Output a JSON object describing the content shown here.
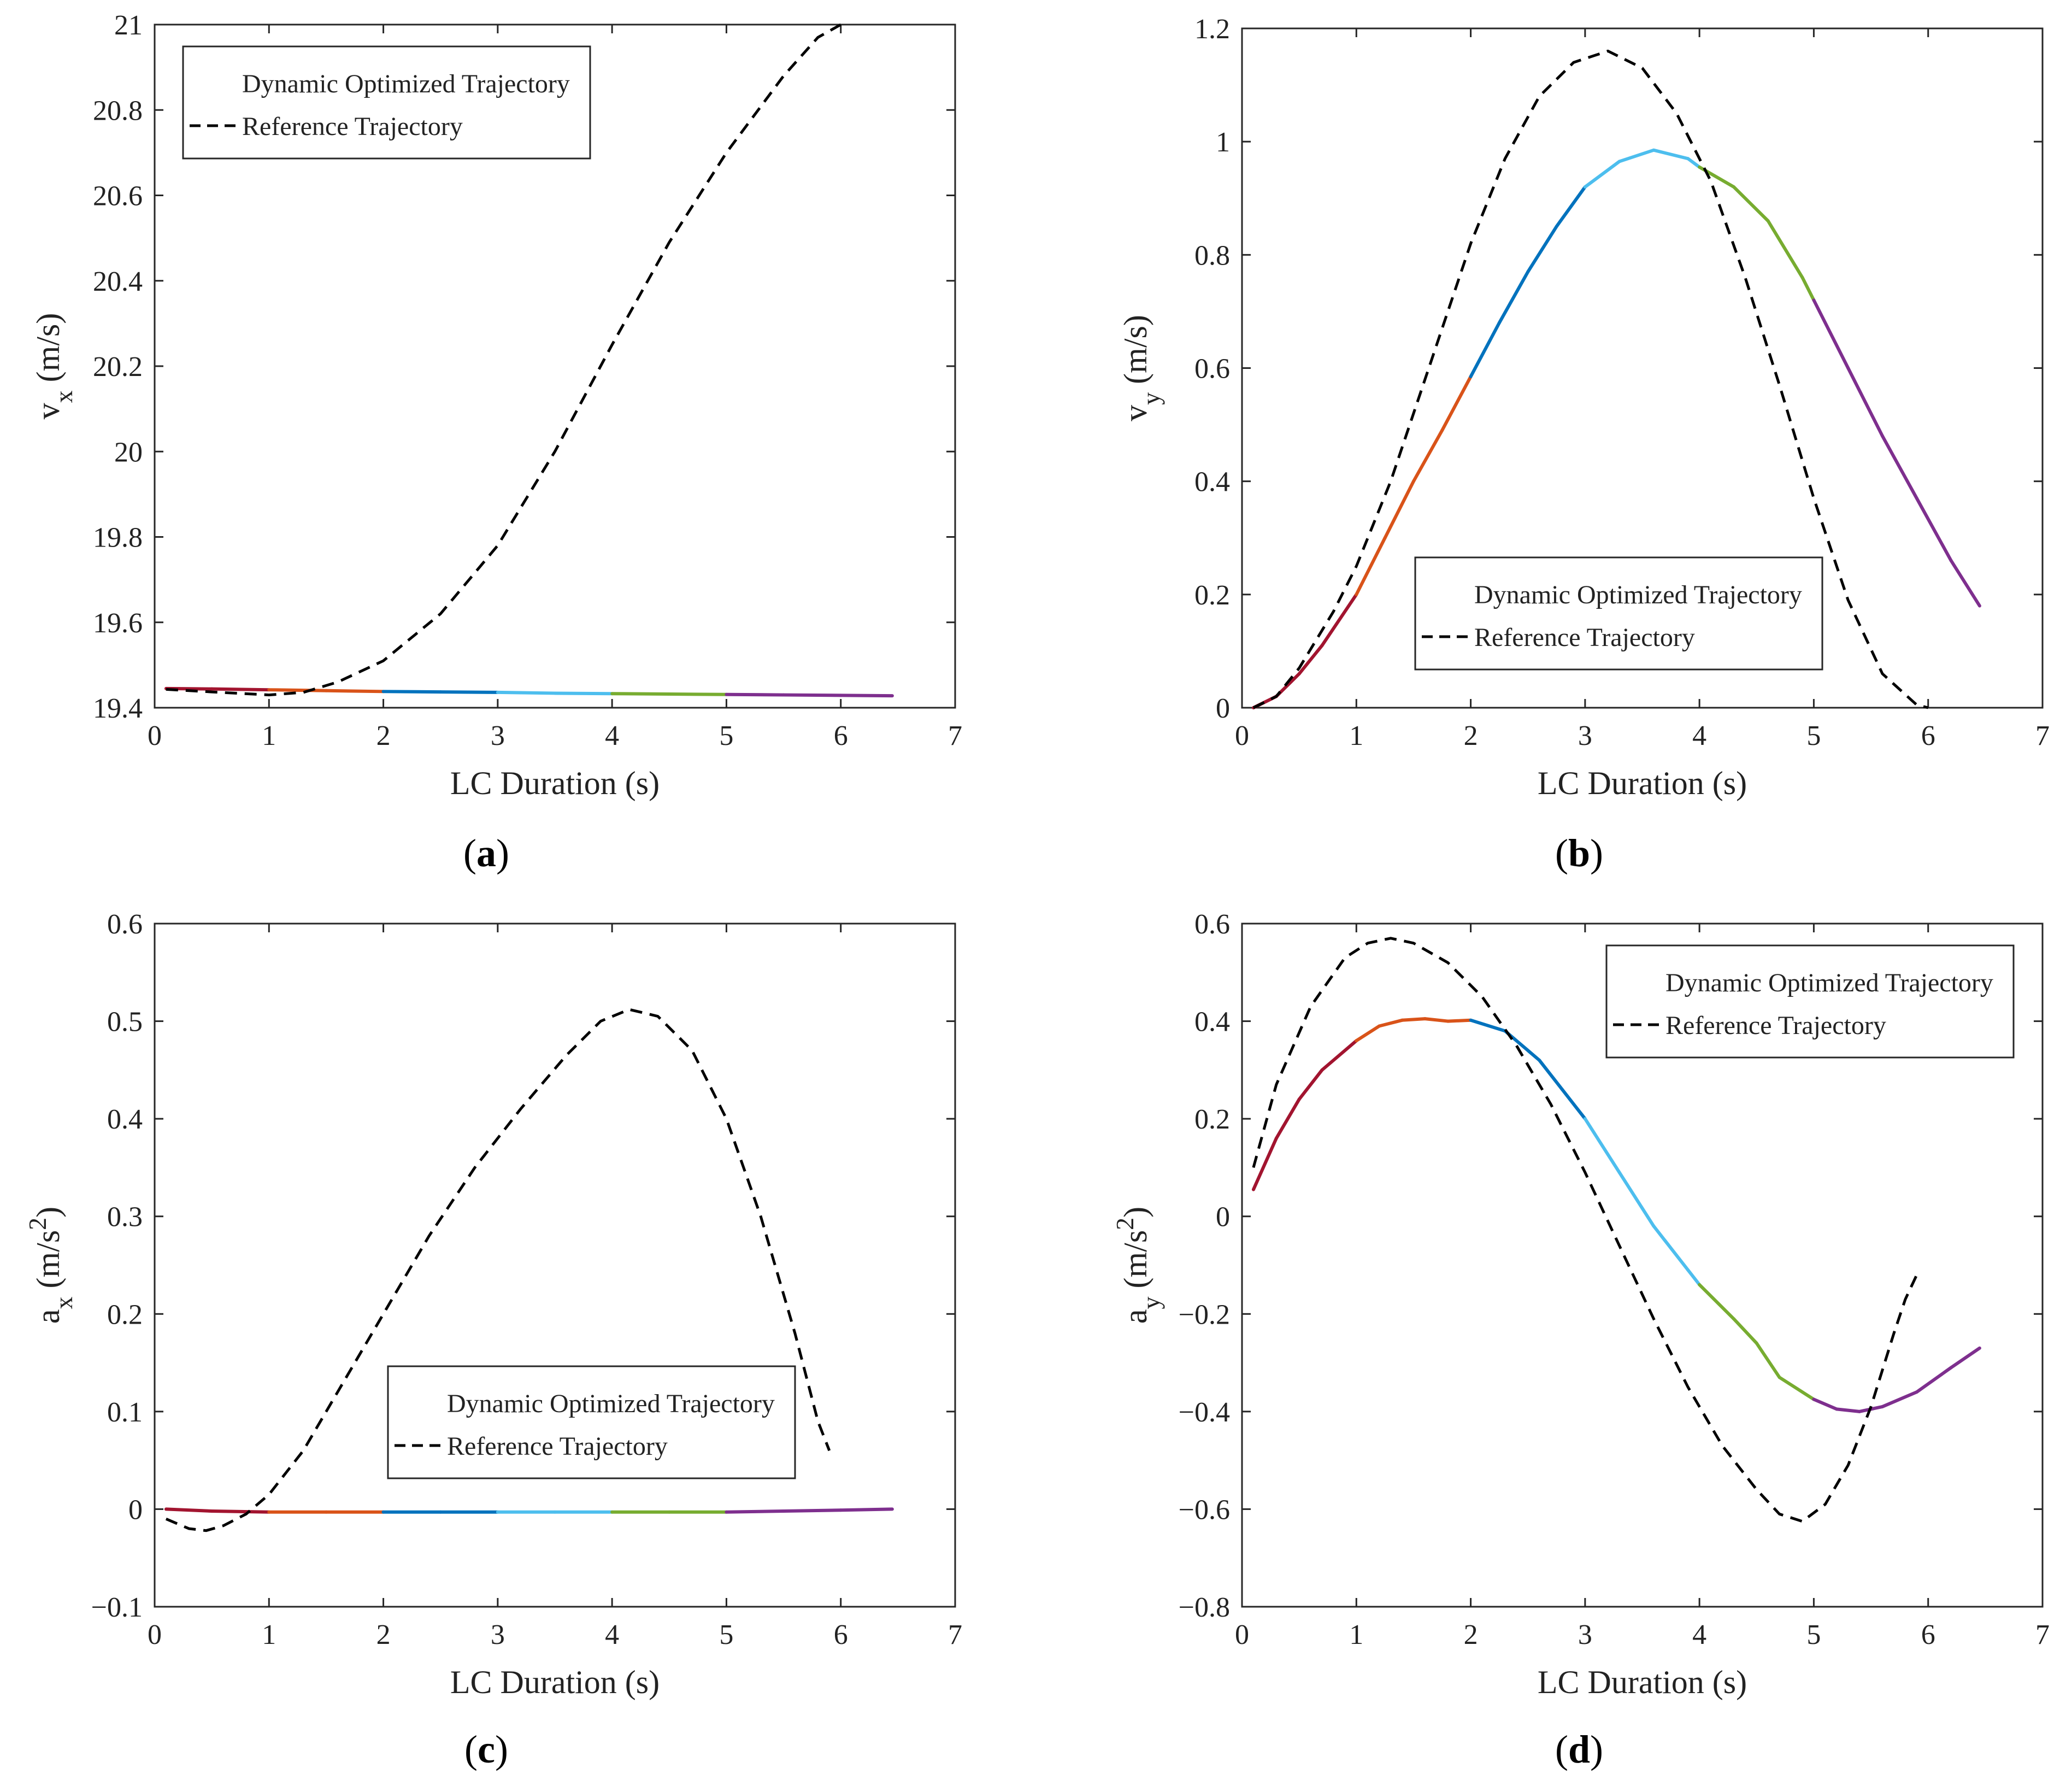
{
  "colors": {
    "segments": [
      "#a2142f",
      "#d95319",
      "#0072bd",
      "#4dbeee",
      "#77ac30",
      "#7e2f8e"
    ],
    "reference": "#000000",
    "axis": "#262626"
  },
  "legend": {
    "dynamic_label": "Dynamic Optimized Trajectory",
    "reference_label": "Reference Trajectory"
  },
  "captions": [
    "a",
    "b",
    "c",
    "d"
  ],
  "chart_data": [
    {
      "type": "line",
      "id": "a",
      "xlabel": "LC Duration (s)",
      "ylabel_main": "v",
      "ylabel_sub": "x",
      "ylabel_unit": "(m/s)",
      "xlim": [
        0,
        7
      ],
      "ylim": [
        19.4,
        21
      ],
      "xticks": [
        0,
        1,
        2,
        3,
        4,
        5,
        6,
        7
      ],
      "yticks": [
        19.4,
        19.6,
        19.8,
        20,
        20.2,
        20.4,
        20.6,
        20.8,
        21
      ],
      "ytick_labels": [
        "19.4",
        "19.6",
        "19.8",
        "20",
        "20.2",
        "20.4",
        "20.6",
        "20.8",
        "21"
      ],
      "legend_position": "top-left",
      "series": [
        {
          "name": "Dynamic Optimized Trajectory",
          "segmented": true,
          "x": [
            0.1,
            0.5,
            1.0,
            1.5,
            2.0,
            2.5,
            3.0,
            3.5,
            4.0,
            4.5,
            5.0,
            5.5,
            6.0,
            6.45
          ],
          "y": [
            19.445,
            19.444,
            19.442,
            19.44,
            19.438,
            19.437,
            19.436,
            19.434,
            19.433,
            19.432,
            19.431,
            19.43,
            19.429,
            19.428
          ]
        },
        {
          "name": "Reference Trajectory",
          "dashed": true,
          "x": [
            0.1,
            0.5,
            1.0,
            1.3,
            1.6,
            2.0,
            2.5,
            3.0,
            3.5,
            4.0,
            4.5,
            5.0,
            5.5,
            5.8,
            6.0
          ],
          "y": [
            19.443,
            19.437,
            19.43,
            19.436,
            19.46,
            19.51,
            19.62,
            19.78,
            20.0,
            20.25,
            20.49,
            20.7,
            20.88,
            20.97,
            21.0
          ]
        }
      ]
    },
    {
      "type": "line",
      "id": "b",
      "xlabel": "LC Duration (s)",
      "ylabel_main": "v",
      "ylabel_sub": "y",
      "ylabel_unit": "(m/s)",
      "xlim": [
        0,
        7
      ],
      "ylim": [
        0,
        1.2
      ],
      "xticks": [
        0,
        1,
        2,
        3,
        4,
        5,
        6,
        7
      ],
      "yticks": [
        0,
        0.2,
        0.4,
        0.6,
        0.8,
        1,
        1.2
      ],
      "ytick_labels": [
        "0",
        "0.2",
        "0.4",
        "0.6",
        "0.8",
        "1",
        "1.2"
      ],
      "legend_position": "bottom-center",
      "series": [
        {
          "name": "Dynamic Optimized Trajectory",
          "segmented": true,
          "x": [
            0.1,
            0.3,
            0.5,
            0.7,
            1.0,
            1.25,
            1.5,
            1.75,
            2.0,
            2.25,
            2.5,
            2.75,
            3.0,
            3.3,
            3.6,
            3.9,
            4.0,
            4.3,
            4.6,
            4.9,
            5.0,
            5.3,
            5.6,
            5.9,
            6.2,
            6.45
          ],
          "y": [
            0.0,
            0.02,
            0.06,
            0.11,
            0.2,
            0.3,
            0.4,
            0.49,
            0.585,
            0.68,
            0.77,
            0.85,
            0.92,
            0.965,
            0.985,
            0.97,
            0.955,
            0.92,
            0.86,
            0.76,
            0.72,
            0.6,
            0.48,
            0.37,
            0.26,
            0.18
          ]
        },
        {
          "name": "Reference Trajectory",
          "dashed": true,
          "x": [
            0.1,
            0.3,
            0.5,
            0.8,
            1.0,
            1.3,
            1.6,
            2.0,
            2.3,
            2.6,
            2.9,
            3.2,
            3.5,
            3.8,
            4.1,
            4.4,
            4.7,
            5.0,
            5.3,
            5.6,
            5.9,
            6.0
          ],
          "y": [
            0.0,
            0.02,
            0.07,
            0.17,
            0.25,
            0.4,
            0.58,
            0.82,
            0.97,
            1.08,
            1.14,
            1.16,
            1.13,
            1.05,
            0.93,
            0.76,
            0.57,
            0.37,
            0.19,
            0.06,
            0.005,
            0.0
          ]
        }
      ]
    },
    {
      "type": "line",
      "id": "c",
      "xlabel": "LC Duration (s)",
      "ylabel_main": "a",
      "ylabel_sub": "x",
      "ylabel_unit": "(m/s",
      "ylabel_sup": "2",
      "ylabel_close": ")",
      "xlim": [
        0,
        7
      ],
      "ylim": [
        -0.1,
        0.6
      ],
      "xticks": [
        0,
        1,
        2,
        3,
        4,
        5,
        6,
        7
      ],
      "yticks": [
        -0.1,
        0,
        0.1,
        0.2,
        0.3,
        0.4,
        0.5,
        0.6
      ],
      "ytick_labels": [
        "−0.1",
        "0",
        "0.1",
        "0.2",
        "0.3",
        "0.4",
        "0.5",
        "0.6"
      ],
      "legend_position": "bottom-center",
      "series": [
        {
          "name": "Dynamic Optimized Trajectory",
          "segmented": true,
          "x": [
            0.1,
            0.5,
            1.0,
            1.5,
            2.0,
            2.5,
            3.0,
            3.5,
            4.0,
            4.5,
            5.0,
            5.5,
            6.0,
            6.45
          ],
          "y": [
            0.0,
            -0.002,
            -0.003,
            -0.003,
            -0.003,
            -0.003,
            -0.003,
            -0.003,
            -0.003,
            -0.003,
            -0.003,
            -0.002,
            -0.001,
            0.0
          ]
        },
        {
          "name": "Reference Trajectory",
          "dashed": true,
          "x": [
            0.1,
            0.3,
            0.45,
            0.6,
            0.8,
            1.0,
            1.3,
            1.6,
            2.0,
            2.4,
            2.8,
            3.2,
            3.6,
            3.9,
            4.15,
            4.4,
            4.7,
            5.0,
            5.3,
            5.6,
            5.8,
            5.9
          ],
          "y": [
            -0.01,
            -0.02,
            -0.022,
            -0.017,
            -0.005,
            0.015,
            0.06,
            0.12,
            0.2,
            0.28,
            0.35,
            0.41,
            0.465,
            0.5,
            0.512,
            0.505,
            0.47,
            0.4,
            0.3,
            0.18,
            0.09,
            0.06
          ]
        }
      ]
    },
    {
      "type": "line",
      "id": "d",
      "xlabel": "LC Duration (s)",
      "ylabel_main": "a",
      "ylabel_sub": "y",
      "ylabel_unit": "(m/s",
      "ylabel_sup": "2",
      "ylabel_close": ")",
      "xlim": [
        0,
        7
      ],
      "ylim": [
        -0.8,
        0.6
      ],
      "xticks": [
        0,
        1,
        2,
        3,
        4,
        5,
        6,
        7
      ],
      "yticks": [
        -0.8,
        -0.6,
        -0.4,
        -0.2,
        0,
        0.2,
        0.4,
        0.6
      ],
      "ytick_labels": [
        "−0.8",
        "−0.6",
        "−0.4",
        "−0.2",
        "0",
        "0.2",
        "0.4",
        "0.6"
      ],
      "legend_position": "top-right",
      "series": [
        {
          "name": "Dynamic Optimized Trajectory",
          "segmented": true,
          "x": [
            0.1,
            0.3,
            0.5,
            0.7,
            1.0,
            1.2,
            1.4,
            1.6,
            1.8,
            2.0,
            2.3,
            2.6,
            2.8,
            3.0,
            3.3,
            3.6,
            3.9,
            4.0,
            4.3,
            4.5,
            4.7,
            5.0,
            5.2,
            5.4,
            5.6,
            5.9,
            6.2,
            6.45
          ],
          "y": [
            0.055,
            0.16,
            0.24,
            0.3,
            0.36,
            0.39,
            0.402,
            0.405,
            0.4,
            0.402,
            0.38,
            0.32,
            0.26,
            0.2,
            0.09,
            -0.02,
            -0.11,
            -0.14,
            -0.21,
            -0.26,
            -0.33,
            -0.375,
            -0.395,
            -0.4,
            -0.39,
            -0.36,
            -0.31,
            -0.27
          ]
        },
        {
          "name": "Reference Trajectory",
          "dashed": true,
          "x": [
            0.1,
            0.3,
            0.6,
            0.9,
            1.1,
            1.3,
            1.5,
            1.8,
            2.1,
            2.4,
            2.7,
            3.0,
            3.3,
            3.6,
            3.9,
            4.2,
            4.5,
            4.7,
            4.9,
            5.1,
            5.3,
            5.5,
            5.7,
            5.8,
            5.9
          ],
          "y": [
            0.1,
            0.27,
            0.43,
            0.53,
            0.56,
            0.57,
            0.56,
            0.52,
            0.45,
            0.35,
            0.23,
            0.09,
            -0.06,
            -0.21,
            -0.35,
            -0.47,
            -0.56,
            -0.61,
            -0.625,
            -0.59,
            -0.51,
            -0.39,
            -0.24,
            -0.17,
            -0.12
          ]
        }
      ]
    }
  ]
}
